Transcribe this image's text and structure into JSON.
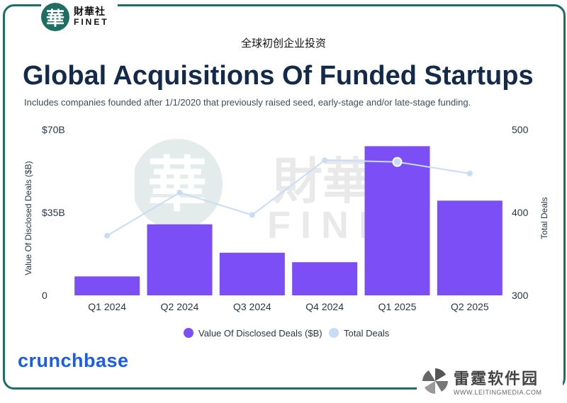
{
  "header": {
    "logo_cn": "財華社",
    "logo_en": "FINET",
    "logo_mark": "華",
    "chinese_title": "全球初创企业投资"
  },
  "chart_data": {
    "type": "bar+line",
    "title": "Global Acquisitions Of Funded Startups",
    "subtitle": "Includes companies founded after 1/1/2020 that previously raised seed, early-stage and/or late-stage funding.",
    "categories": [
      "Q1 2024",
      "Q2 2024",
      "Q3 2024",
      "Q4 2024",
      "Q1 2025",
      "Q2 2025"
    ],
    "series": [
      {
        "name": "Value Of Disclosed Deals ($B)",
        "type": "bar",
        "axis": "left",
        "color": "#7b4ff5",
        "values": [
          8,
          30,
          18,
          14,
          63,
          40
        ]
      },
      {
        "name": "Total Deals",
        "type": "line",
        "axis": "right",
        "color": "#c9dcf6",
        "values": [
          372,
          424,
          397,
          463,
          461,
          447
        ]
      }
    ],
    "left_axis": {
      "label": "Value Of Disclosed Deals ($B)",
      "ylim": [
        0,
        70
      ],
      "ticks": [
        0,
        35,
        70
      ],
      "tick_labels": [
        "0",
        "$35B",
        "$70B"
      ]
    },
    "right_axis": {
      "label": "Total Deals",
      "ylim": [
        300,
        500
      ],
      "ticks": [
        300,
        400,
        500
      ],
      "tick_labels": [
        "300",
        "400",
        "500"
      ]
    },
    "highlighted_point": {
      "series": "Total Deals",
      "category": "Q1 2025"
    },
    "legend_position": "bottom-center",
    "grid": false
  },
  "footer": {
    "brand": "crunchbase",
    "corner_cn": "雷霆软件园",
    "corner_url": "WWW.LEITINGMEDIA.COM"
  },
  "watermark": {
    "cn": "財華社",
    "en": "FINET",
    "mark": "華"
  }
}
